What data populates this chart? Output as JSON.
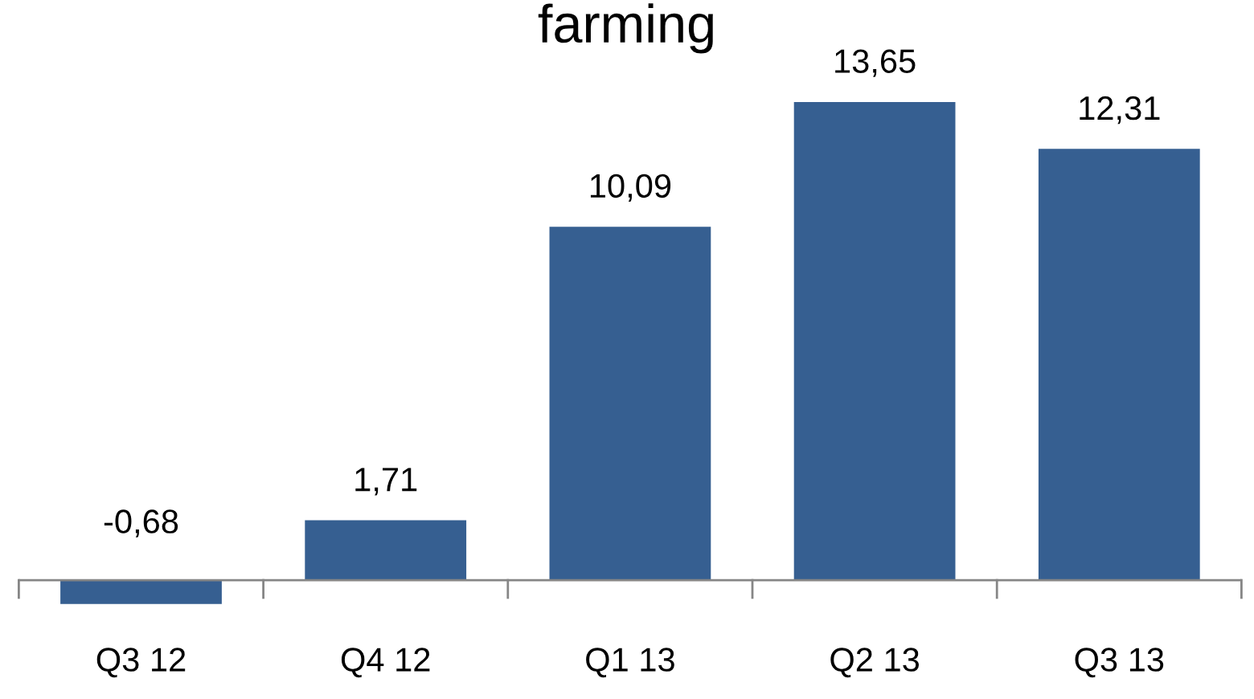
{
  "chart_data": {
    "type": "bar",
    "title": "farming",
    "categories": [
      "Q3 12",
      "Q4 12",
      "Q1 13",
      "Q2 13",
      "Q3 13"
    ],
    "values": [
      -0.68,
      1.71,
      10.09,
      13.65,
      12.31
    ],
    "value_labels": [
      "-0,68",
      "1,71",
      "10,09",
      "13,65",
      "12,31"
    ],
    "color": "#365f91",
    "grid": false,
    "legend": false
  }
}
